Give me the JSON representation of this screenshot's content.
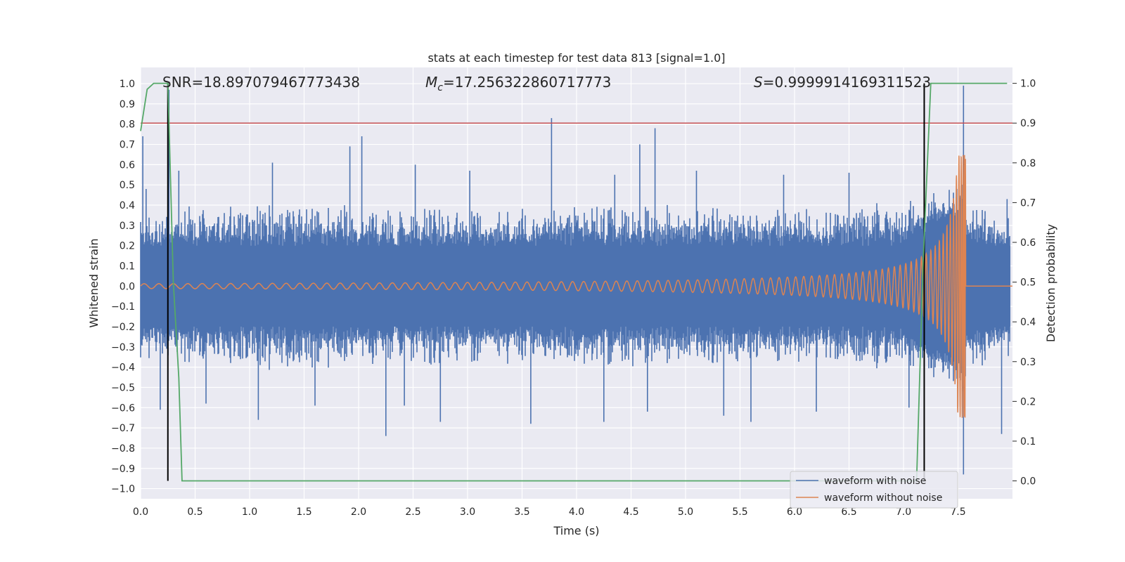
{
  "chart_data": {
    "type": "line",
    "title": "stats at each timestep for test data 813 [signal=1.0]",
    "xlabel": "Time (s)",
    "ylabel": "Whitened strain",
    "y2label": "Detection probability",
    "xlim": [
      0.0,
      8.0
    ],
    "ylim": [
      -1.05,
      1.08
    ],
    "y2lim": [
      -0.045,
      1.04
    ],
    "xticks": [
      0.0,
      0.5,
      1.0,
      1.5,
      2.0,
      2.5,
      3.0,
      3.5,
      4.0,
      4.5,
      5.0,
      5.5,
      6.0,
      6.5,
      7.0,
      7.5
    ],
    "yticks": [
      -1.0,
      -0.9,
      -0.8,
      -0.7,
      -0.6,
      -0.5,
      -0.4,
      -0.3,
      -0.2,
      -0.1,
      0.0,
      0.1,
      0.2,
      0.3,
      0.4,
      0.5,
      0.6,
      0.7,
      0.8,
      0.9,
      1.0
    ],
    "y2ticks": [
      0.0,
      0.1,
      0.2,
      0.3,
      0.4,
      0.5,
      0.6,
      0.7,
      0.8,
      0.9,
      1.0
    ],
    "annotations": {
      "snr": "SNR=18.897079467773438",
      "mc_symbol": "M",
      "mc_sub": "c",
      "mc_value": "=17.256322860717773",
      "s_symbol": "S",
      "s_value": "=0.9999914169311523"
    },
    "threshold": {
      "y2": 0.9,
      "color": "#c44e52"
    },
    "vlines": [
      0.25,
      7.19
    ],
    "noise_series": {
      "name": "waveform with noise",
      "color": "#4c72b0",
      "envelope_base": 0.2,
      "spikes": [
        {
          "x": 0.02,
          "y": 0.74
        },
        {
          "x": 0.05,
          "y": 0.48
        },
        {
          "x": 0.18,
          "y": -0.61
        },
        {
          "x": 0.26,
          "y": 0.97
        },
        {
          "x": 0.35,
          "y": 0.57
        },
        {
          "x": 0.6,
          "y": -0.58
        },
        {
          "x": 1.08,
          "y": -0.66
        },
        {
          "x": 1.21,
          "y": 0.61
        },
        {
          "x": 1.6,
          "y": -0.59
        },
        {
          "x": 1.92,
          "y": 0.69
        },
        {
          "x": 2.03,
          "y": 0.74
        },
        {
          "x": 2.25,
          "y": -0.74
        },
        {
          "x": 2.42,
          "y": -0.59
        },
        {
          "x": 2.52,
          "y": 0.6
        },
        {
          "x": 2.75,
          "y": -0.67
        },
        {
          "x": 3.02,
          "y": 0.57
        },
        {
          "x": 3.58,
          "y": -0.68
        },
        {
          "x": 3.77,
          "y": 0.83
        },
        {
          "x": 4.25,
          "y": -0.67
        },
        {
          "x": 4.35,
          "y": 0.55
        },
        {
          "x": 4.58,
          "y": 0.7
        },
        {
          "x": 4.72,
          "y": 0.78
        },
        {
          "x": 4.65,
          "y": -0.62
        },
        {
          "x": 5.1,
          "y": 0.57
        },
        {
          "x": 5.35,
          "y": -0.64
        },
        {
          "x": 5.6,
          "y": -0.67
        },
        {
          "x": 5.9,
          "y": 0.55
        },
        {
          "x": 6.2,
          "y": -0.62
        },
        {
          "x": 6.5,
          "y": 0.56
        },
        {
          "x": 7.05,
          "y": -0.6
        },
        {
          "x": 7.55,
          "y": 0.99
        },
        {
          "x": 7.55,
          "y": -0.93
        },
        {
          "x": 7.9,
          "y": -0.73
        },
        {
          "x": 7.95,
          "y": 0.43
        }
      ]
    },
    "clean_series": {
      "name": "waveform without noise",
      "color": "#dd8452",
      "amplitude_start": 0.012,
      "amplitude_peak": 0.65,
      "merger_time": 7.57
    },
    "probability_series": {
      "name": "detection probability",
      "color": "#55a868",
      "x": [
        0.0,
        0.06,
        0.12,
        0.25,
        0.3,
        0.35,
        0.38,
        7.12,
        7.18,
        7.25,
        7.95
      ],
      "y": [
        0.88,
        0.985,
        1.0,
        1.0,
        0.5,
        0.26,
        0.0,
        0.0,
        0.55,
        1.0,
        1.0
      ]
    },
    "legend": {
      "position": "lower-right",
      "entries": [
        {
          "label": "waveform with noise",
          "color": "#4c72b0"
        },
        {
          "label": "waveform without noise",
          "color": "#dd8452"
        }
      ]
    }
  }
}
